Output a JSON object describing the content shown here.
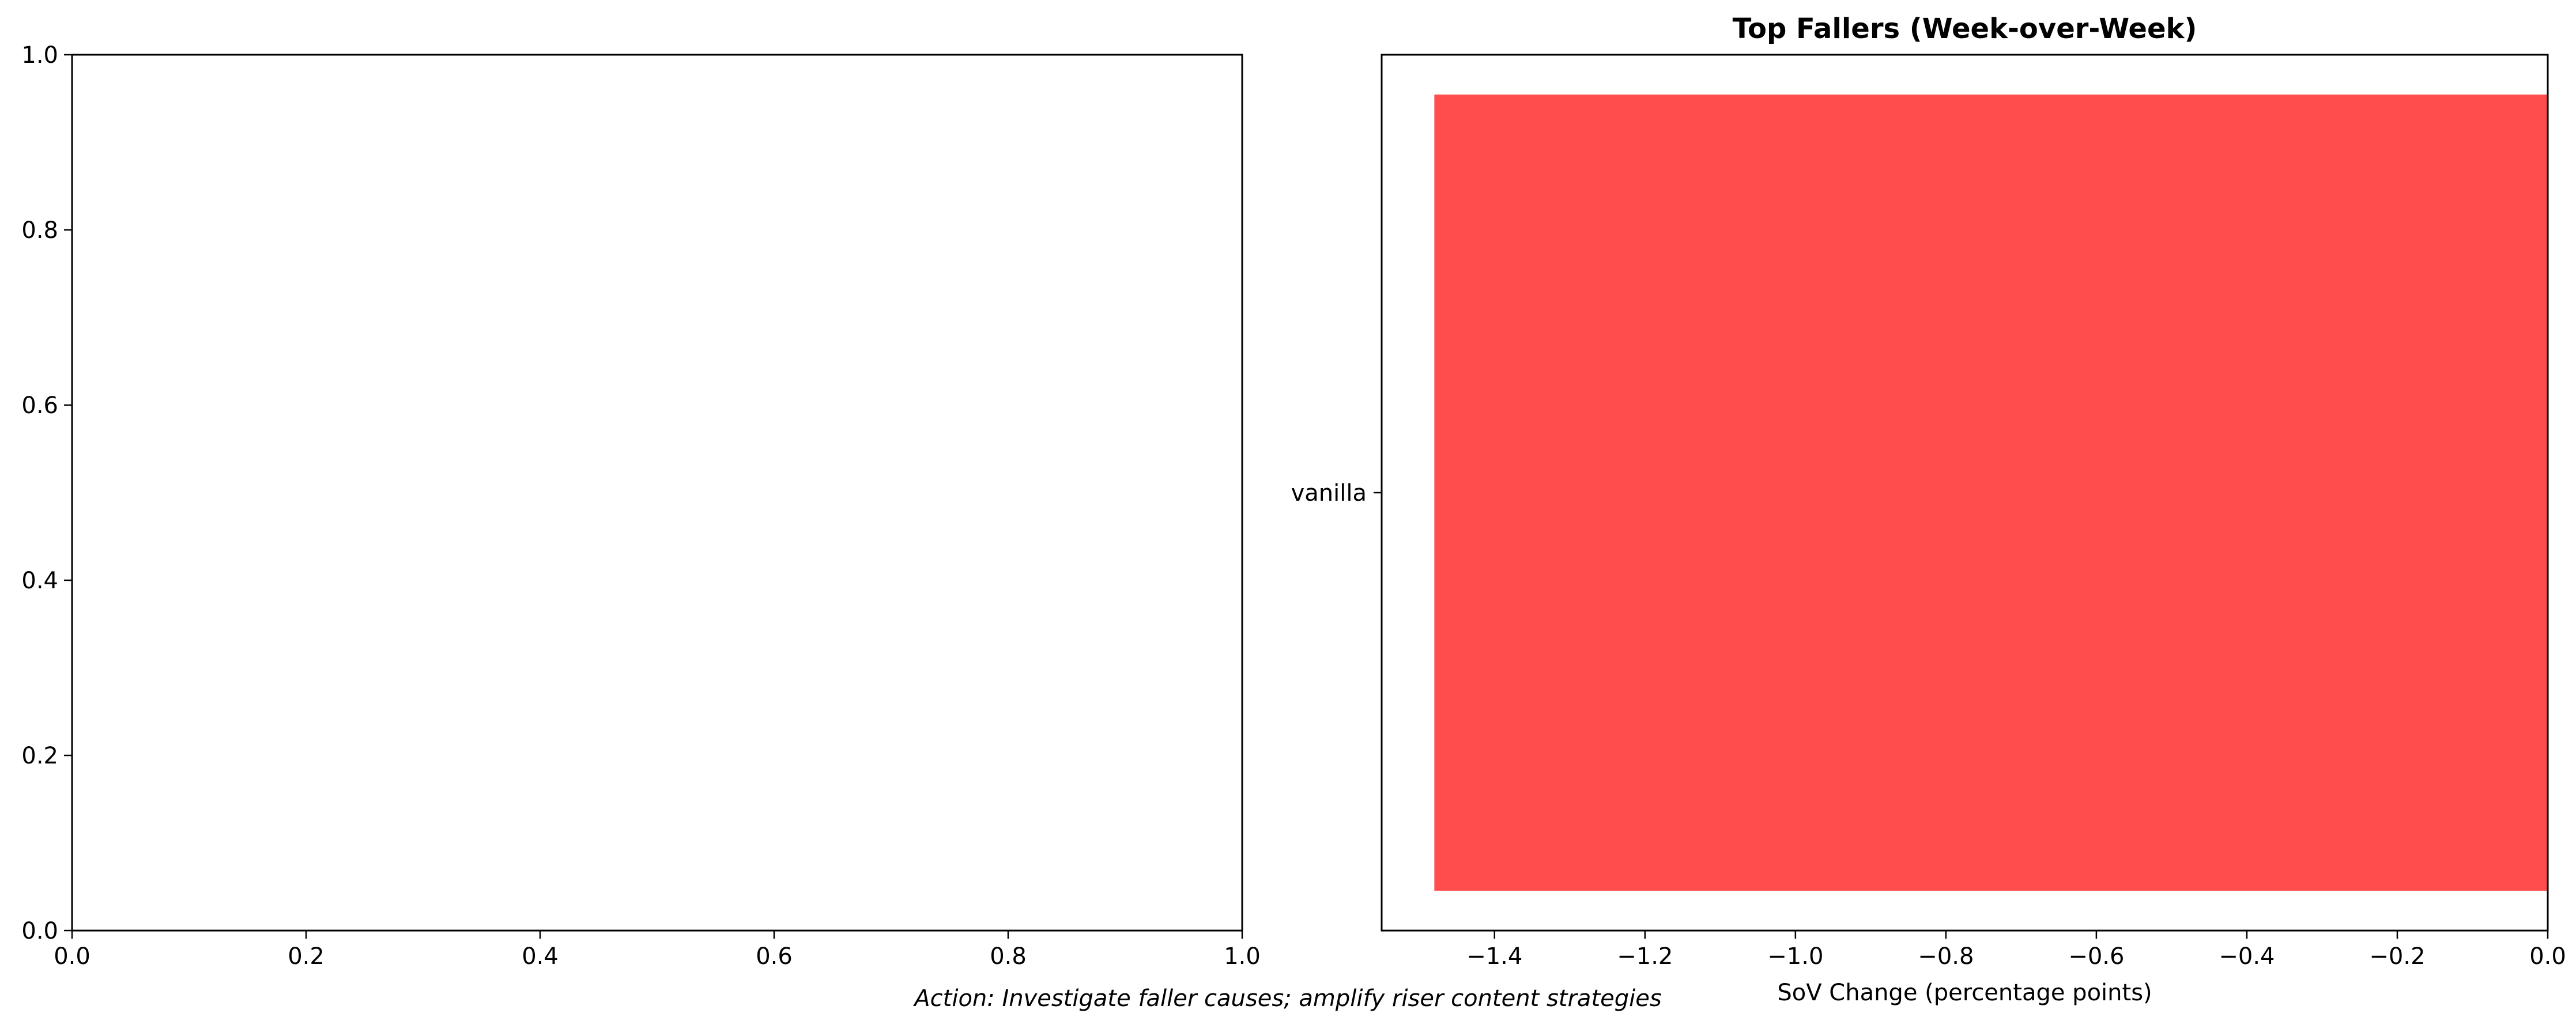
{
  "chart_data": [
    {
      "type": "bar",
      "title": "",
      "xlabel": "",
      "ylabel": "",
      "xlim": [
        0,
        1
      ],
      "ylim": [
        0,
        1
      ],
      "xticks": [
        "0.0",
        "0.2",
        "0.4",
        "0.6",
        "0.8",
        "1.0"
      ],
      "yticks": [
        "0.0",
        "0.2",
        "0.4",
        "0.6",
        "0.8",
        "1.0"
      ],
      "categories": [],
      "values": [],
      "grid": false
    },
    {
      "type": "bar",
      "orientation": "horizontal",
      "title": "Top Fallers (Week-over-Week)",
      "xlabel": "SoV Change (percentage points)",
      "ylabel": "",
      "categories": [
        "vanilla"
      ],
      "values": [
        -1.48
      ],
      "xlim": [
        -1.55,
        0
      ],
      "xticks": [
        "−1.4",
        "−1.2",
        "−1.0",
        "−0.8",
        "−0.6",
        "−0.4",
        "−0.2",
        "0.0"
      ],
      "bar_color": "#ff4d4d",
      "grid": false
    }
  ],
  "footnote": "Action: Investigate faller causes; amplify riser content strategies"
}
